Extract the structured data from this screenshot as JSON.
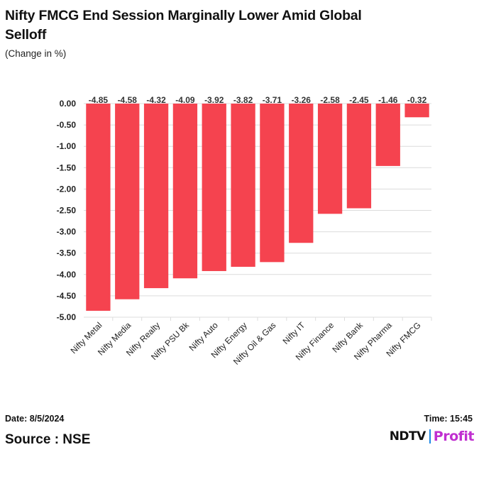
{
  "header": {
    "title": "Nifty FMCG End Session Marginally Lower Amid Global Selloff",
    "subtitle": "(Change in %)"
  },
  "footer": {
    "date": "Date: 8/5/2024",
    "time": "Time: 15:45",
    "source": "Source : NSE",
    "logo_ndtv": "NDTV",
    "logo_profit": "Profit"
  },
  "colors": {
    "bar": "#f5434f",
    "grid": "#dcdcdc",
    "logo_accent": "#c02fd0"
  },
  "chart_data": {
    "type": "bar",
    "title": "Nifty FMCG End Session Marginally Lower Amid Global Selloff",
    "ylabel": "Change in %",
    "xlabel": "",
    "categories": [
      "Nifty Metal",
      "Nifty Media",
      "Nifty Realty",
      "Nifty PSU Bk",
      "Nifty Auto",
      "Nifty Energy",
      "Nifty Oil & Gas",
      "Nifty IT",
      "Nifty Finance",
      "Nifty Bank",
      "Nifty Pharma",
      "Nifty FMCG"
    ],
    "values": [
      -4.85,
      -4.58,
      -4.32,
      -4.09,
      -3.92,
      -3.82,
      -3.71,
      -3.26,
      -2.58,
      -2.45,
      -1.46,
      -0.32
    ],
    "data_labels": [
      "-4.85",
      "-4.58",
      "-4.32",
      "-4.09",
      "-3.92",
      "-3.82",
      "-3.71",
      "-3.26",
      "-2.58",
      "-2.45",
      "-1.46",
      "-0.32"
    ],
    "ylim": [
      -5.0,
      0.0
    ],
    "yticks": [
      0.0,
      -0.5,
      -1.0,
      -1.5,
      -2.0,
      -2.5,
      -3.0,
      -3.5,
      -4.0,
      -4.5,
      -5.0
    ],
    "ytick_labels": [
      "0.00",
      "-0.50",
      "-1.00",
      "-1.50",
      "-2.00",
      "-2.50",
      "-3.00",
      "-3.50",
      "-4.00",
      "-4.50",
      "-5.00"
    ],
    "grid": true,
    "legend": "none"
  }
}
